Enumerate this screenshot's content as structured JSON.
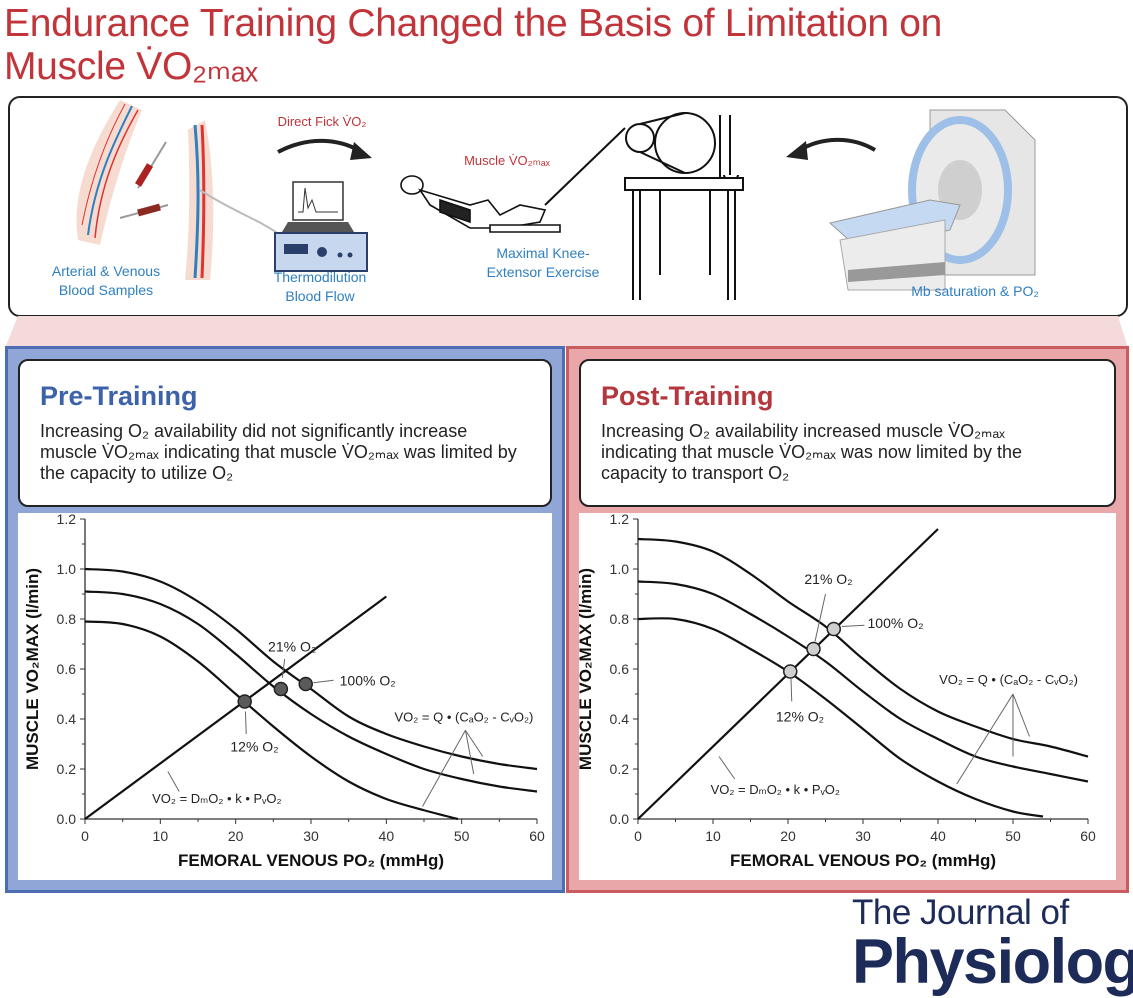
{
  "title": {
    "line1": "Endurance Training Changed the Basis of Limitation on",
    "line2": "Muscle V̇O₂ₘₐₓ"
  },
  "methods": {
    "blood_samples": [
      "Arterial & Venous",
      "Blood Samples"
    ],
    "thermodilution": [
      "Thermodilution",
      "Blood Flow"
    ],
    "direct_fick": "Direct Fick V̇O₂",
    "muscle_vo2": "Muscle V̇O₂ₘₐₓ",
    "exercise": [
      "Maximal Knee-",
      "Extensor Exercise"
    ],
    "mri": "Mb saturation & PO₂",
    "label_color": "#2f7fc1",
    "accent_color": "#c0343a"
  },
  "panels": {
    "pre": {
      "title": "Pre-Training",
      "body": "Increasing O₂ availability did not significantly increase muscle V̇O₂ₘₐₓ indicating that muscle V̇O₂ₘₐₓ was limited by the capacity to utilize O₂",
      "bg": "#8fa6d6"
    },
    "post": {
      "title": "Post-Training",
      "body": "Increasing O₂ availability increased muscle V̇O₂ₘₐₓ indicating that muscle V̇O₂ₘₐₓ was now limited by the capacity to transport O₂",
      "bg": "#e9a7aa"
    }
  },
  "chart_data": [
    {
      "type": "line",
      "xlabel": "FEMORAL VENOUS PO₂ (mmHg)",
      "ylabel": "MUSCLE VO₂MAX (l/min)",
      "xlim": [
        0,
        60
      ],
      "ylim": [
        0,
        1.2
      ],
      "xticks": [
        "0",
        "10",
        "20",
        "30",
        "40",
        "50",
        "60"
      ],
      "yticks": [
        "0.0",
        "0.2",
        "0.4",
        "0.6",
        "0.8",
        "1.0",
        "1.2"
      ],
      "diffusion_line": [
        [
          0,
          0
        ],
        [
          40,
          0.89
        ]
      ],
      "convection_curves": [
        [
          [
            0,
            1.0
          ],
          [
            5,
            0.99
          ],
          [
            10,
            0.95
          ],
          [
            15,
            0.87
          ],
          [
            20,
            0.76
          ],
          [
            25,
            0.63
          ],
          [
            30,
            0.52
          ],
          [
            35,
            0.41
          ],
          [
            40,
            0.34
          ],
          [
            45,
            0.29
          ],
          [
            50,
            0.25
          ],
          [
            55,
            0.22
          ],
          [
            60,
            0.2
          ]
        ],
        [
          [
            0,
            0.91
          ],
          [
            5,
            0.9
          ],
          [
            10,
            0.86
          ],
          [
            15,
            0.78
          ],
          [
            20,
            0.66
          ],
          [
            25,
            0.53
          ],
          [
            30,
            0.42
          ],
          [
            35,
            0.33
          ],
          [
            40,
            0.26
          ],
          [
            45,
            0.2
          ],
          [
            50,
            0.16
          ],
          [
            55,
            0.13
          ],
          [
            60,
            0.11
          ]
        ],
        [
          [
            0,
            0.79
          ],
          [
            5,
            0.78
          ],
          [
            10,
            0.73
          ],
          [
            15,
            0.63
          ],
          [
            20,
            0.5
          ],
          [
            25,
            0.37
          ],
          [
            30,
            0.25
          ],
          [
            35,
            0.15
          ],
          [
            40,
            0.08
          ],
          [
            45,
            0.035
          ],
          [
            49.5,
            0
          ]
        ]
      ],
      "points": [
        {
          "label": "12% O₂",
          "x": 21.2,
          "y": 0.47
        },
        {
          "label": "21% O₂",
          "x": 26,
          "y": 0.52
        },
        {
          "label": "100% O₂",
          "x": 29.3,
          "y": 0.54
        }
      ],
      "point_color": "#5a5a5a",
      "diffusion_eq": "VO₂ = DₘO₂ • k • PᵥO₂",
      "convection_eq": "VO₂ = Q • (CₐO₂ -  CᵥO₂)"
    },
    {
      "type": "line",
      "xlabel": "FEMORAL VENOUS PO₂ (mmHg)",
      "ylabel": "MUSCLE VO₂MAX (l/min)",
      "xlim": [
        0,
        60
      ],
      "ylim": [
        0,
        1.2
      ],
      "xticks": [
        "0",
        "10",
        "20",
        "30",
        "40",
        "50",
        "60"
      ],
      "yticks": [
        "0.0",
        "0.2",
        "0.4",
        "0.6",
        "0.8",
        "1.0",
        "1.2"
      ],
      "diffusion_line": [
        [
          0,
          0
        ],
        [
          40,
          1.16
        ]
      ],
      "convection_curves": [
        [
          [
            0,
            1.12
          ],
          [
            5,
            1.11
          ],
          [
            10,
            1.07
          ],
          [
            15,
            0.98
          ],
          [
            20,
            0.87
          ],
          [
            25,
            0.77
          ],
          [
            30,
            0.64
          ],
          [
            35,
            0.52
          ],
          [
            40,
            0.43
          ],
          [
            45,
            0.37
          ],
          [
            50,
            0.32
          ],
          [
            55,
            0.29
          ],
          [
            60,
            0.25
          ]
        ],
        [
          [
            0,
            0.95
          ],
          [
            5,
            0.94
          ],
          [
            10,
            0.9
          ],
          [
            15,
            0.82
          ],
          [
            20,
            0.73
          ],
          [
            25,
            0.63
          ],
          [
            30,
            0.51
          ],
          [
            35,
            0.4
          ],
          [
            40,
            0.32
          ],
          [
            45,
            0.25
          ],
          [
            50,
            0.21
          ],
          [
            55,
            0.18
          ],
          [
            60,
            0.15
          ]
        ],
        [
          [
            0,
            0.8
          ],
          [
            5,
            0.8
          ],
          [
            10,
            0.76
          ],
          [
            15,
            0.68
          ],
          [
            20,
            0.59
          ],
          [
            25,
            0.48
          ],
          [
            30,
            0.36
          ],
          [
            35,
            0.24
          ],
          [
            40,
            0.15
          ],
          [
            45,
            0.08
          ],
          [
            50,
            0.03
          ],
          [
            54,
            0.01
          ]
        ]
      ],
      "points": [
        {
          "label": "12% O₂",
          "x": 20.3,
          "y": 0.59
        },
        {
          "label": "21% O₂",
          "x": 23.4,
          "y": 0.68
        },
        {
          "label": "100% O₂",
          "x": 26.1,
          "y": 0.76
        }
      ],
      "point_color": "#cfcfcf",
      "diffusion_eq": "VO₂ = DₘO₂ • k • PᵥO₂",
      "convection_eq": "VO₂ = Q • (CₐO₂ -  CᵥO₂)"
    }
  ],
  "logo": {
    "line1": "The Journal of",
    "line2": "Physiology"
  }
}
